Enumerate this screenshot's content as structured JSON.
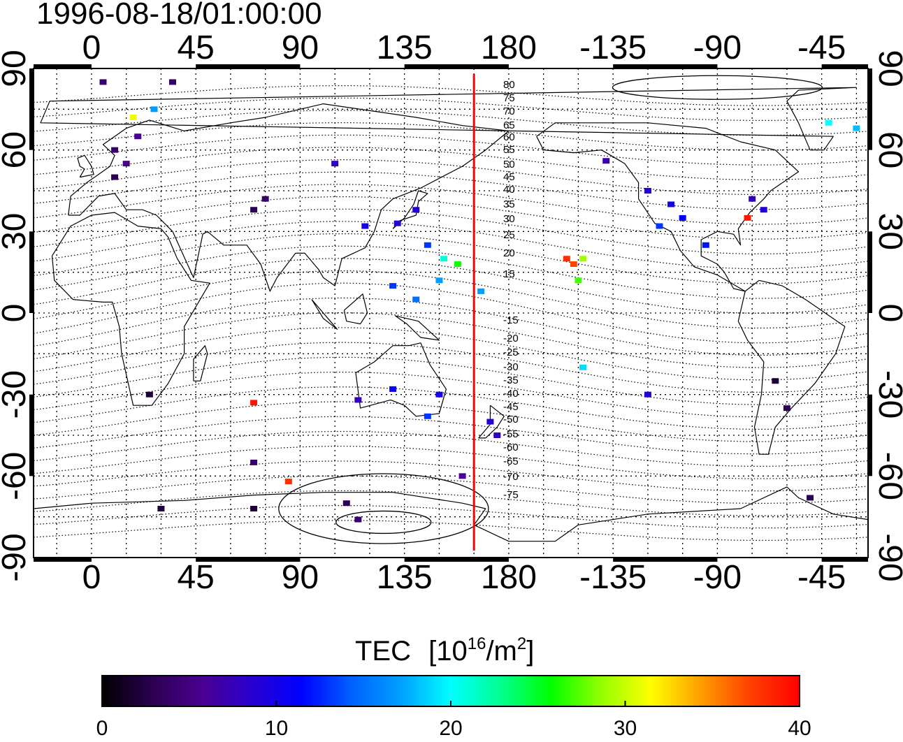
{
  "title": "1996-08-18/01:00:00",
  "map": {
    "lon_tick_labels": [
      "0",
      "45",
      "90",
      "135",
      "180",
      "-135",
      "-90",
      "-45"
    ],
    "lat_tick_labels": [
      "90",
      "60",
      "30",
      "0",
      "-30",
      "-60",
      "-90"
    ],
    "lon_range": [
      -25,
      335
    ],
    "lat_range": [
      -90,
      90
    ],
    "grid": "dotted",
    "terminator_lon": 165,
    "terminator_color": "#ff0000"
  },
  "contours": {
    "labels": [
      "80",
      "75",
      "70",
      "65",
      "60",
      "55",
      "50",
      "45",
      "40",
      "35",
      "30",
      "25",
      "20",
      "15",
      "-15",
      "-20",
      "-25",
      "-30",
      "-35",
      "-40",
      "-45",
      "-50",
      "-55",
      "-60",
      "-65",
      "-70",
      "-75"
    ]
  },
  "colorbar": {
    "title": "TEC",
    "unit_prefix": "[10",
    "unit_exp": "16",
    "unit_mid": "/m",
    "unit_exp2": "2",
    "unit_suffix": "]",
    "tick_labels": [
      "0",
      "10",
      "20",
      "30",
      "40"
    ],
    "range": [
      0,
      40
    ],
    "colors": [
      "#000000",
      "#2a0050",
      "#4b0090",
      "#2a00d0",
      "#0000ff",
      "#0060ff",
      "#00a0ff",
      "#00ffff",
      "#00ff90",
      "#00ff00",
      "#90ff00",
      "#ffff00",
      "#ffa000",
      "#ff4000",
      "#ff0000"
    ]
  },
  "chart_data": {
    "type": "heatmap",
    "title": "1996-08-18/01:00:00",
    "xlabel": "",
    "ylabel": "",
    "value_label": "TEC [10^16/m^2]",
    "xlim": [
      -25,
      335
    ],
    "ylim": [
      -90,
      90
    ],
    "points": [
      {
        "lon": 5,
        "lat": 85,
        "tec": 4
      },
      {
        "lon": 35,
        "lat": 85,
        "tec": 4
      },
      {
        "lon": 10,
        "lat": 60,
        "tec": 4
      },
      {
        "lon": 15,
        "lat": 55,
        "tec": 5
      },
      {
        "lon": 20,
        "lat": 65,
        "tec": 6
      },
      {
        "lon": 10,
        "lat": 50,
        "tec": 3
      },
      {
        "lon": 18,
        "lat": 72,
        "tec": 31
      },
      {
        "lon": 27,
        "lat": 75,
        "tec": 17
      },
      {
        "lon": 70,
        "lat": 38,
        "tec": 3
      },
      {
        "lon": 75,
        "lat": 42,
        "tec": 4
      },
      {
        "lon": 105,
        "lat": 55,
        "tec": 8
      },
      {
        "lon": 118,
        "lat": 32,
        "tec": 10
      },
      {
        "lon": 132,
        "lat": 33,
        "tec": 9
      },
      {
        "lon": 140,
        "lat": 38,
        "tec": 9
      },
      {
        "lon": 145,
        "lat": 25,
        "tec": 13
      },
      {
        "lon": 152,
        "lat": 20,
        "tec": 21
      },
      {
        "lon": 158,
        "lat": 18,
        "tec": 26
      },
      {
        "lon": 150,
        "lat": 12,
        "tec": 17
      },
      {
        "lon": 130,
        "lat": 10,
        "tec": 13
      },
      {
        "lon": 140,
        "lat": 5,
        "tec": 15
      },
      {
        "lon": 168,
        "lat": 8,
        "tec": 17
      },
      {
        "lon": 205,
        "lat": 20,
        "tec": 38
      },
      {
        "lon": 208,
        "lat": 18,
        "tec": 37
      },
      {
        "lon": 212,
        "lat": 20,
        "tec": 29
      },
      {
        "lon": 210,
        "lat": 12,
        "tec": 27
      },
      {
        "lon": 222,
        "lat": 56,
        "tec": 7
      },
      {
        "lon": 240,
        "lat": 45,
        "tec": 9
      },
      {
        "lon": 250,
        "lat": 40,
        "tec": 10
      },
      {
        "lon": 255,
        "lat": 35,
        "tec": 11
      },
      {
        "lon": 245,
        "lat": 32,
        "tec": 13
      },
      {
        "lon": 265,
        "lat": 25,
        "tec": 12
      },
      {
        "lon": 285,
        "lat": 42,
        "tec": 8
      },
      {
        "lon": 290,
        "lat": 38,
        "tec": 9
      },
      {
        "lon": 283,
        "lat": 35,
        "tec": 39
      },
      {
        "lon": 318,
        "lat": 70,
        "tec": 20
      },
      {
        "lon": 330,
        "lat": 68,
        "tec": 18
      },
      {
        "lon": 295,
        "lat": -25,
        "tec": 2
      },
      {
        "lon": 300,
        "lat": -35,
        "tec": 3
      },
      {
        "lon": 115,
        "lat": -32,
        "tec": 8
      },
      {
        "lon": 130,
        "lat": -28,
        "tec": 11
      },
      {
        "lon": 145,
        "lat": -38,
        "tec": 13
      },
      {
        "lon": 150,
        "lat": -30,
        "tec": 10
      },
      {
        "lon": 172,
        "lat": -40,
        "tec": 9
      },
      {
        "lon": 175,
        "lat": -45,
        "tec": 8
      },
      {
        "lon": 212,
        "lat": -20,
        "tec": 19
      },
      {
        "lon": 240,
        "lat": -30,
        "tec": 9
      },
      {
        "lon": 70,
        "lat": -33,
        "tec": 39
      },
      {
        "lon": 85,
        "lat": -62,
        "tec": 38
      },
      {
        "lon": 25,
        "lat": -30,
        "tec": 2
      },
      {
        "lon": 70,
        "lat": -55,
        "tec": 4
      },
      {
        "lon": 30,
        "lat": -72,
        "tec": 2
      },
      {
        "lon": 70,
        "lat": -72,
        "tec": 2
      },
      {
        "lon": 110,
        "lat": -70,
        "tec": 3
      },
      {
        "lon": 115,
        "lat": -76,
        "tec": 4
      },
      {
        "lon": 310,
        "lat": -68,
        "tec": 3
      },
      {
        "lon": 160,
        "lat": -60,
        "tec": 6
      }
    ]
  }
}
